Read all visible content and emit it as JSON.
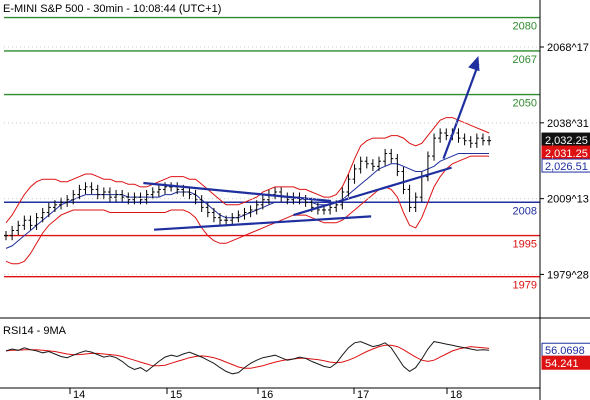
{
  "header": {
    "title": "E-MINI S&P 500 - 30min - 10:08:44 (UTC+1)"
  },
  "chart_data": {
    "type": "candlestick",
    "title": "E-MINI S&P 500 - 30min - 10:08:44 (UTC+1)",
    "grid": false,
    "price_axis": {
      "ticks": [
        {
          "label": "2068^17",
          "value": 2068.53
        },
        {
          "label": "2038^31",
          "value": 2038.97
        },
        {
          "label": "2009^13",
          "value": 2009.41
        },
        {
          "label": "1979^28",
          "value": 1979.88
        }
      ]
    },
    "x_axis": {
      "tick_labels": [
        "14",
        "15",
        "16",
        "17",
        "18"
      ]
    },
    "price_badges": [
      {
        "label": "2,032.25",
        "value": 2032.25,
        "style": "dark"
      },
      {
        "label": "2,031.25",
        "value": 2031.25,
        "style": "red"
      },
      {
        "label": "2,026.51",
        "value": 2026.51,
        "style": "blue"
      }
    ],
    "horizontal_levels": [
      {
        "label": "2080",
        "value": 2080,
        "color": "#2e8b2e"
      },
      {
        "label": "2067",
        "value": 2067,
        "color": "#2e8b2e"
      },
      {
        "label": "2050",
        "value": 2050,
        "color": "#2e8b2e"
      },
      {
        "label": "2008",
        "value": 2008,
        "color": "#1f2f9f"
      },
      {
        "label": "1995",
        "value": 1995,
        "color": "#dd1111"
      },
      {
        "label": "1979",
        "value": 1979,
        "color": "#dd1111"
      }
    ],
    "trend_lines": [
      {
        "from": [
          0.26,
          2015.5
        ],
        "to": [
          0.61,
          2008.5
        ]
      },
      {
        "from": [
          0.28,
          1997.3
        ],
        "to": [
          0.685,
          2002.5
        ]
      },
      {
        "from": [
          0.54,
          2003.0
        ],
        "to": [
          0.835,
          2021.5
        ]
      }
    ],
    "projection_arrow": {
      "from": [
        0.82,
        2025.0
      ],
      "to": [
        0.885,
        2065.0
      ]
    },
    "series": [
      {
        "name": "price",
        "values": [
          1995,
          1997,
          1999,
          2001,
          1999,
          2002,
          2004,
          2006,
          2007,
          2008,
          2009,
          2011,
          2013,
          2014,
          2013,
          2011,
          2012,
          2010,
          2011,
          2010,
          2009,
          2010,
          2009,
          2011,
          2012,
          2013,
          2014,
          2014,
          2013,
          2012,
          2011,
          2009,
          2006,
          2004,
          2002,
          2001,
          2001,
          2002,
          2003,
          2004,
          2005,
          2007,
          2009,
          2011,
          2012,
          2010,
          2009,
          2010,
          2009,
          2008,
          2006,
          2005,
          2005,
          2006,
          2007,
          2012,
          2017,
          2021,
          2024,
          2023,
          2022,
          2024,
          2027,
          2025,
          2020,
          2013,
          2006,
          2010,
          2018,
          2026,
          2033,
          2035,
          2034,
          2035,
          2033,
          2032,
          2031,
          2033,
          2032,
          2032
        ]
      },
      {
        "name": "upper band",
        "values": [
          2000,
          2003,
          2007,
          2011,
          2014,
          2016,
          2017,
          2017,
          2017,
          2016,
          2016,
          2017,
          2018,
          2019,
          2019,
          2018,
          2017,
          2017,
          2016,
          2016,
          2015,
          2015,
          2014,
          2014,
          2015,
          2016,
          2017,
          2018,
          2018,
          2018,
          2017,
          2017,
          2015,
          2013,
          2011,
          2009,
          2007,
          2007,
          2007,
          2008,
          2009,
          2010,
          2012,
          2013,
          2014,
          2014,
          2014,
          2014,
          2013,
          2013,
          2012,
          2011,
          2010,
          2010,
          2011,
          2014,
          2019,
          2025,
          2030,
          2032,
          2033,
          2033,
          2033,
          2034,
          2034,
          2033,
          2031,
          2030,
          2031,
          2034,
          2037,
          2040,
          2041,
          2041,
          2040,
          2039,
          2038,
          2037,
          2036,
          2035
        ]
      },
      {
        "name": "lower band",
        "values": [
          1985,
          1984,
          1984,
          1985,
          1988,
          1992,
          1996,
          1999,
          2001,
          2003,
          2004,
          2005,
          2005,
          2005,
          2005,
          2005,
          2005,
          2004,
          2004,
          2004,
          2004,
          2004,
          2004,
          2004,
          2004,
          2004,
          2004,
          2005,
          2005,
          2005,
          2004,
          2002,
          1998,
          1995,
          1993,
          1992,
          1992,
          1993,
          1994,
          1995,
          1996,
          1997,
          1998,
          1999,
          2000,
          2001,
          2002,
          2003,
          2003,
          2003,
          2002,
          2001,
          2000,
          2000,
          2000,
          2001,
          2003,
          2005,
          2007,
          2009,
          2011,
          2013,
          2014,
          2013,
          2010,
          2004,
          1999,
          1998,
          2002,
          2008,
          2014,
          2018,
          2021,
          2023,
          2024,
          2025,
          2026,
          2026,
          2026,
          2026
        ]
      },
      {
        "name": "moving average",
        "values": [
          1990,
          1991,
          1993,
          1995,
          1997,
          1999,
          2001,
          2003,
          2005,
          2007,
          2008,
          2009,
          2010,
          2011,
          2011,
          2011,
          2011,
          2011,
          2011,
          2011,
          2010,
          2010,
          2010,
          2010,
          2010,
          2010,
          2011,
          2011,
          2012,
          2012,
          2012,
          2011,
          2009,
          2007,
          2005,
          2003,
          2002,
          2002,
          2002,
          2003,
          2004,
          2005,
          2006,
          2007,
          2008,
          2008,
          2008,
          2008,
          2008,
          2008,
          2008,
          2007,
          2007,
          2007,
          2008,
          2009,
          2011,
          2013,
          2015,
          2017,
          2019,
          2021,
          2022,
          2023,
          2023,
          2022,
          2021,
          2020,
          2020,
          2021,
          2022,
          2024,
          2025,
          2026,
          2027,
          2027,
          2027,
          2027,
          2027,
          2027
        ]
      }
    ],
    "rsi": {
      "title": "RSI14 - 9MA",
      "range": [
        0,
        100
      ],
      "badges": [
        {
          "label": "56.0698",
          "value": 56.0698,
          "style": "blue"
        },
        {
          "label": "54.241",
          "value": 54.241,
          "style": "red"
        }
      ],
      "rsi_values": [
        55,
        58,
        56,
        60,
        57,
        55,
        52,
        54,
        50,
        46,
        44,
        48,
        52,
        55,
        53,
        49,
        45,
        47,
        44,
        38,
        30,
        25,
        28,
        22,
        30,
        38,
        45,
        48,
        46,
        50,
        53,
        49,
        45,
        40,
        35,
        28,
        22,
        18,
        20,
        28,
        35,
        40,
        44,
        46,
        48,
        44,
        40,
        42,
        45,
        43,
        38,
        34,
        30,
        28,
        35,
        48,
        60,
        68,
        70,
        66,
        62,
        64,
        68,
        60,
        45,
        30,
        22,
        28,
        42,
        58,
        70,
        68,
        66,
        64,
        62,
        60,
        58,
        56,
        57,
        56
      ],
      "ma_values": [
        55,
        56,
        56,
        57,
        57,
        57,
        56,
        55,
        54,
        52,
        50,
        49,
        49,
        50,
        51,
        51,
        50,
        49,
        48,
        46,
        43,
        40,
        37,
        34,
        31,
        31,
        32,
        35,
        38,
        41,
        44,
        46,
        47,
        46,
        44,
        41,
        37,
        33,
        29,
        27,
        27,
        29,
        31,
        34,
        37,
        39,
        41,
        42,
        43,
        43,
        42,
        41,
        39,
        37,
        36,
        37,
        40,
        44,
        49,
        54,
        58,
        62,
        64,
        64,
        62,
        57,
        51,
        45,
        40,
        38,
        40,
        45,
        50,
        55,
        58,
        60,
        62,
        61,
        60,
        59
      ]
    }
  }
}
